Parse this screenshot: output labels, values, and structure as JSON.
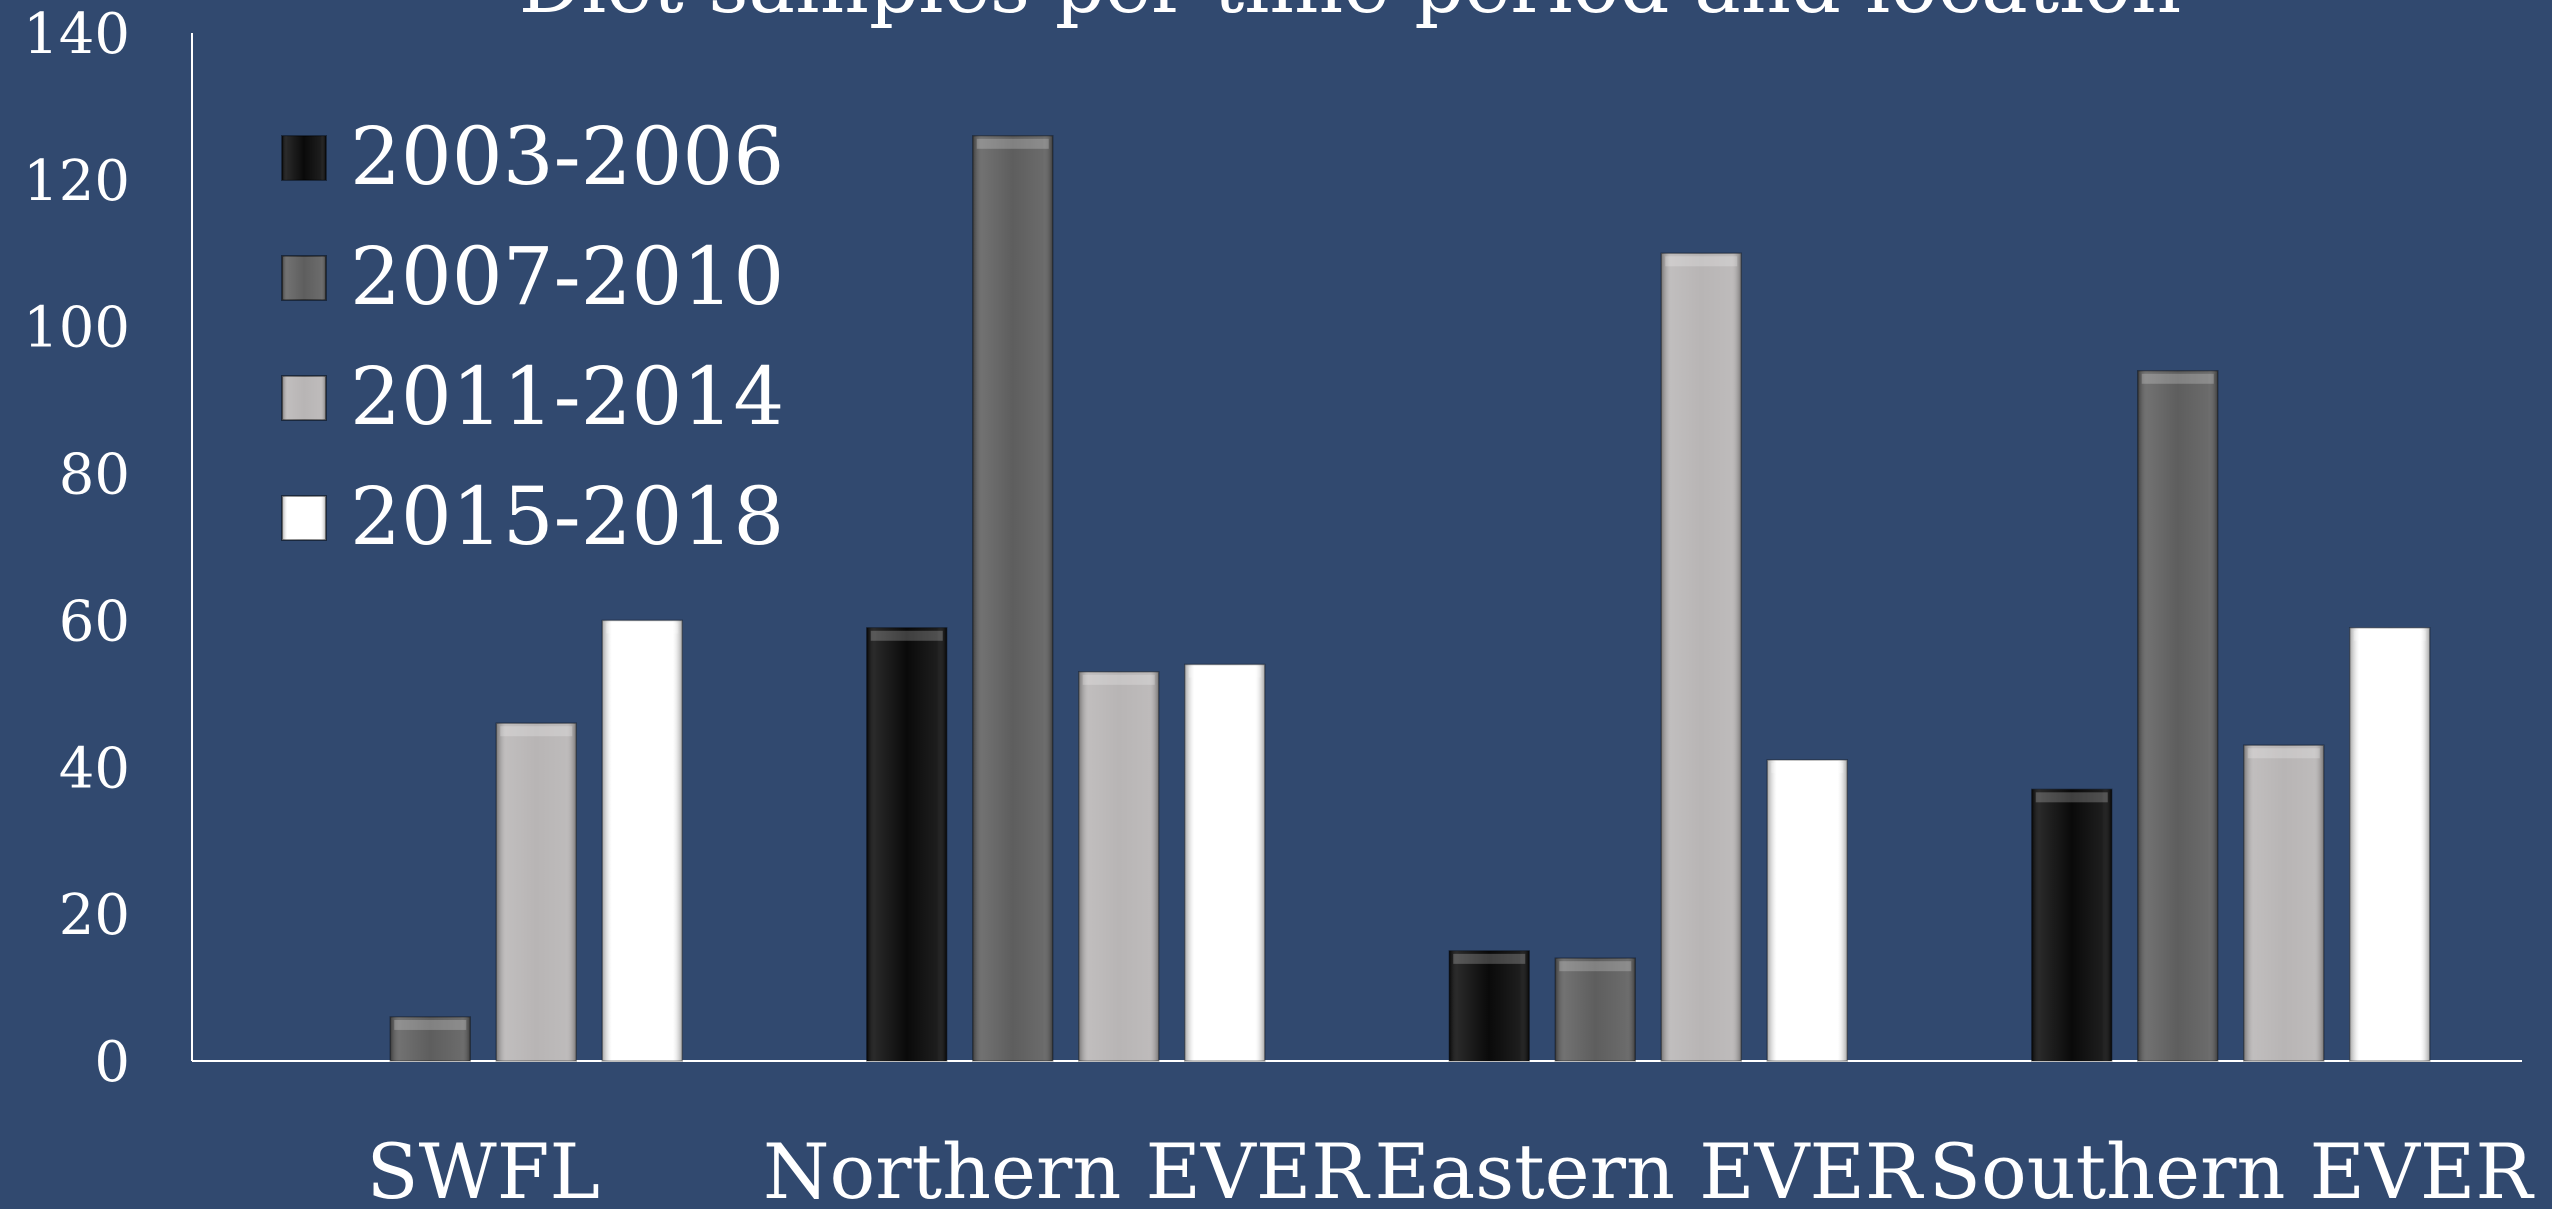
{
  "chart_data": {
    "type": "bar",
    "title": "Diet samples per time period and location",
    "xlabel": "",
    "ylabel": "",
    "ylim": [
      0,
      140
    ],
    "yticks": [
      "0",
      "20",
      "40",
      "60",
      "80",
      "100",
      "120",
      "140"
    ],
    "categories": [
      "SWFL",
      "Northern EVER",
      "Eastern EVER",
      "Southern EVER"
    ],
    "legend_position": "top-left",
    "grid": false,
    "series": [
      {
        "name": "2003-2006",
        "color": "#0a0a0a",
        "values": [
          0,
          59,
          15,
          37
        ]
      },
      {
        "name": "2007-2010",
        "color": "#5e5e5e",
        "values": [
          6,
          126,
          14,
          94
        ]
      },
      {
        "name": "2011-2014",
        "color": "#b8b5b5",
        "values": [
          46,
          53,
          110,
          43
        ]
      },
      {
        "name": "2015-2018",
        "color": "#ffffff",
        "values": [
          60,
          54,
          41,
          59
        ]
      }
    ],
    "colors": {
      "background": "#31496f",
      "text": "#ffffff",
      "axis": "#ffffff"
    }
  }
}
